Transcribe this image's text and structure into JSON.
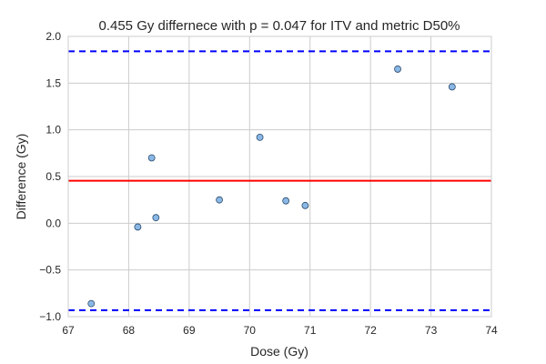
{
  "chart_data": {
    "type": "scatter",
    "title": "0.455 Gy differnece with p = 0.047 for ITV and metric D50%",
    "xlabel": "Dose (Gy)",
    "ylabel": "Difference (Gy)",
    "xlim": [
      67,
      74
    ],
    "ylim": [
      -1.0,
      2.0
    ],
    "x_ticks": [
      67,
      68,
      69,
      70,
      71,
      72,
      73,
      74
    ],
    "x_tick_labels": [
      "67",
      "68",
      "69",
      "70",
      "71",
      "72",
      "73",
      "74"
    ],
    "y_ticks": [
      -1.0,
      -0.5,
      0.0,
      0.5,
      1.0,
      1.5,
      2.0
    ],
    "y_tick_labels": [
      "−1.0",
      "−0.5",
      "0.0",
      "0.5",
      "1.0",
      "1.5",
      "2.0"
    ],
    "grid": true,
    "points": [
      {
        "x": 67.38,
        "y": -0.86
      },
      {
        "x": 68.15,
        "y": -0.04
      },
      {
        "x": 68.38,
        "y": 0.7
      },
      {
        "x": 68.45,
        "y": 0.06
      },
      {
        "x": 69.5,
        "y": 0.25
      },
      {
        "x": 70.17,
        "y": 0.92
      },
      {
        "x": 70.6,
        "y": 0.24
      },
      {
        "x": 70.92,
        "y": 0.19
      },
      {
        "x": 72.45,
        "y": 1.65
      },
      {
        "x": 73.35,
        "y": 1.46
      }
    ],
    "reference_lines": [
      {
        "kind": "mean",
        "y": 0.455,
        "color": "#ff0000",
        "style": "solid"
      },
      {
        "kind": "upper-limit",
        "y": 1.84,
        "color": "#0000ff",
        "style": "dashed"
      },
      {
        "kind": "lower-limit",
        "y": -0.93,
        "color": "#0000ff",
        "style": "dashed"
      }
    ],
    "colors": {
      "marker_fill": "#8ab8e6",
      "marker_edge": "#2b4a6b",
      "grid": "#cccccc",
      "frame": "#cccccc"
    }
  }
}
